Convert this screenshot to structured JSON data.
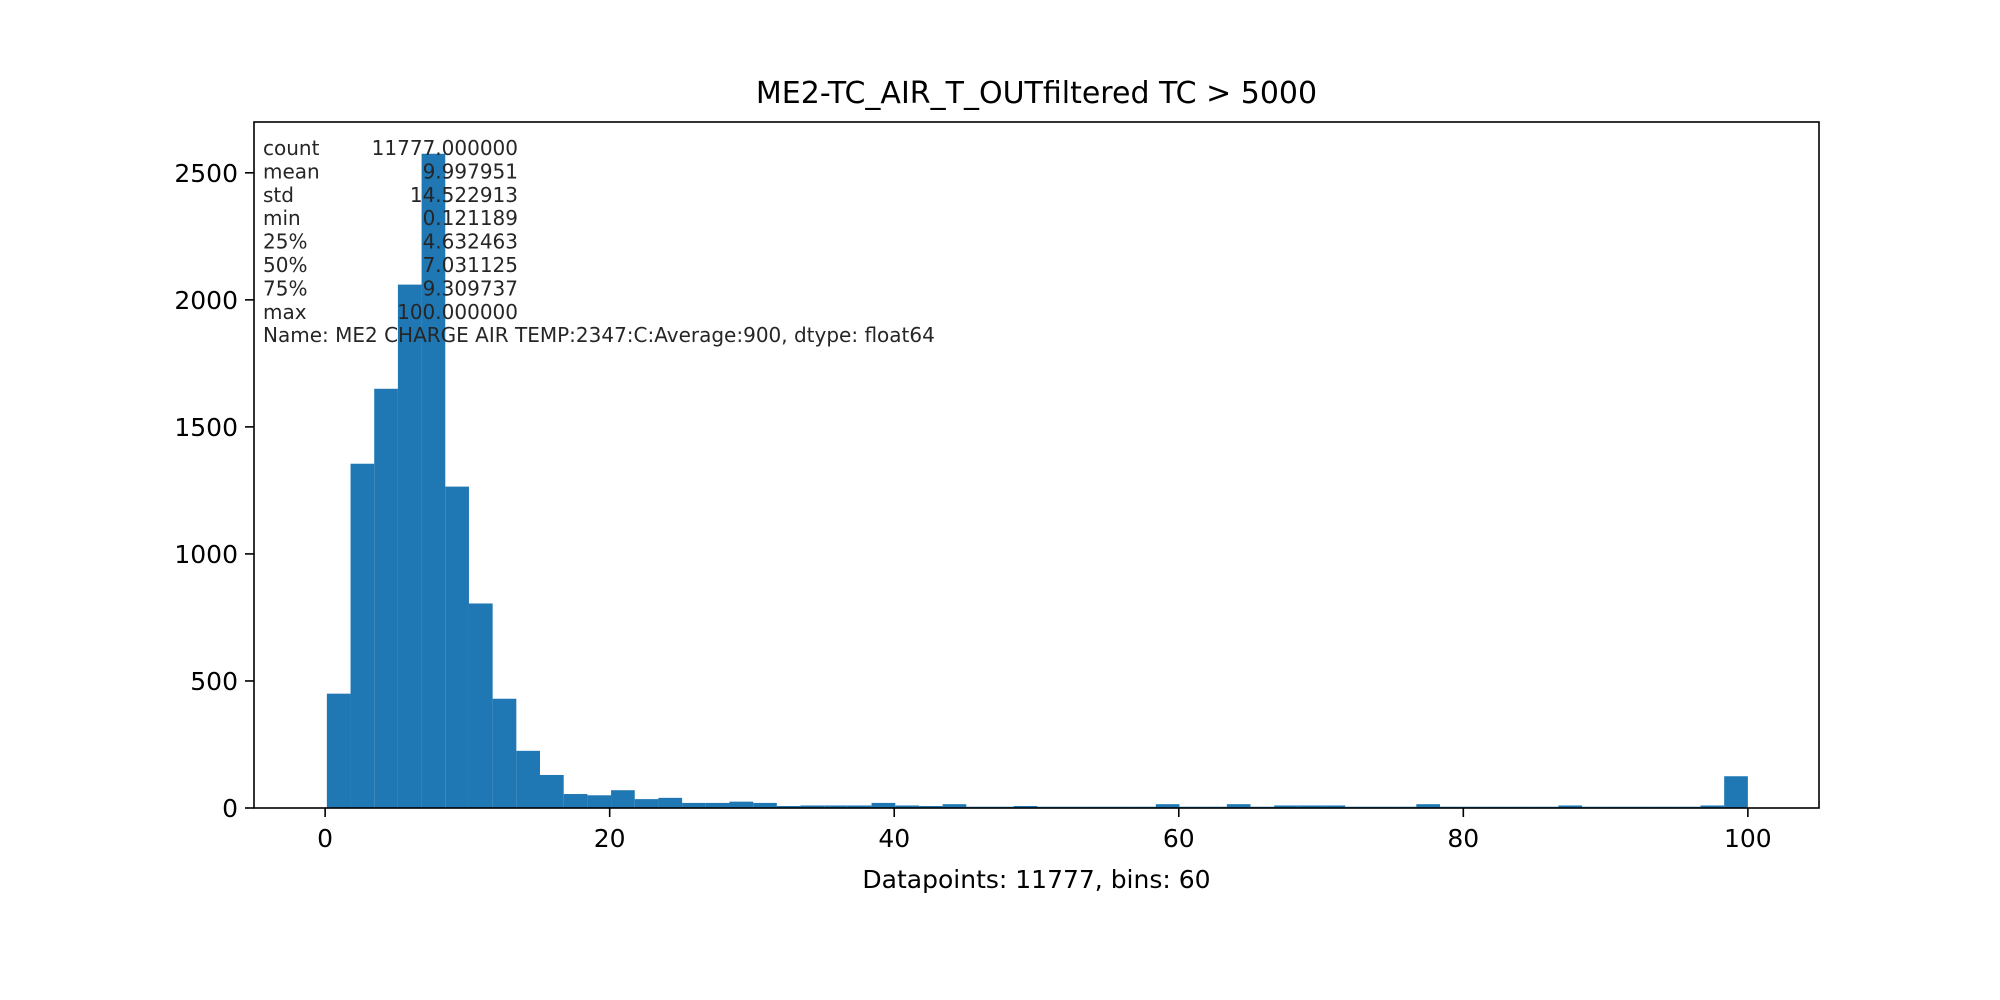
{
  "chart_data": {
    "type": "bar",
    "title": "ME2-TC_AIR_T_OUTfiltered TC > 5000",
    "xlabel": "Datapoints: 11777, bins: 60",
    "ylabel": "",
    "xlim": [
      -5,
      105
    ],
    "ylim": [
      0,
      2700
    ],
    "x_ticks": [
      0,
      20,
      40,
      60,
      80,
      100
    ],
    "x_tick_labels": [
      "0",
      "20",
      "40",
      "60",
      "80",
      "100"
    ],
    "y_ticks": [
      0,
      500,
      1000,
      1500,
      2000,
      2500
    ],
    "y_tick_labels": [
      "0",
      "500",
      "1000",
      "1500",
      "2000",
      "2500"
    ],
    "bar_color": "#1f77b4",
    "bin_start": 0.121189,
    "bin_end": 100.0,
    "bins": 60,
    "values": [
      450,
      1355,
      1650,
      2060,
      2575,
      1265,
      805,
      430,
      225,
      130,
      55,
      50,
      70,
      35,
      40,
      20,
      20,
      25,
      20,
      8,
      10,
      10,
      10,
      20,
      10,
      8,
      15,
      5,
      5,
      8,
      5,
      5,
      5,
      5,
      5,
      15,
      5,
      5,
      15,
      5,
      10,
      10,
      10,
      5,
      5,
      5,
      15,
      5,
      5,
      5,
      5,
      5,
      10,
      5,
      5,
      5,
      5,
      5,
      10,
      125
    ],
    "stats_lines": [
      {
        "k": "count",
        "v": "11777.000000"
      },
      {
        "k": "mean",
        "v": "9.997951"
      },
      {
        "k": "std",
        "v": "14.522913"
      },
      {
        "k": "min",
        "v": "0.121189"
      },
      {
        "k": "25%",
        "v": "4.632463"
      },
      {
        "k": "50%",
        "v": "7.031125"
      },
      {
        "k": "75%",
        "v": "9.309737"
      },
      {
        "k": "max",
        "v": "100.000000"
      }
    ],
    "stats_footer": "Name: ME2 CHARGE AIR TEMP:2347:C:Average:900, dtype: float64"
  }
}
